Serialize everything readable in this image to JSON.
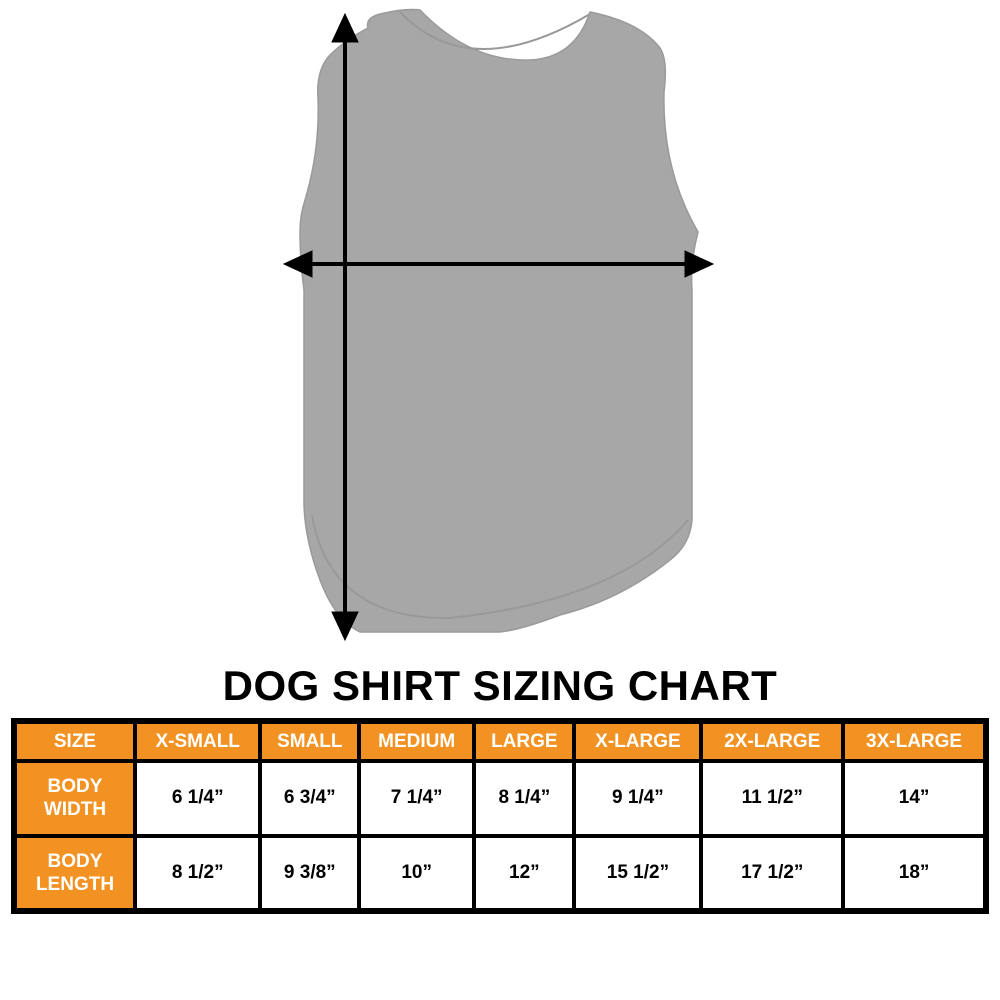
{
  "title": "DOG SHIRT SIZING CHART",
  "colors": {
    "header_bg": "#f29222",
    "shirt": "#a7a7a7",
    "border": "#000000"
  },
  "table": {
    "headers": [
      "SIZE",
      "X-SMALL",
      "SMALL",
      "MEDIUM",
      "LARGE",
      "X-LARGE",
      "2X-LARGE",
      "3X-LARGE"
    ],
    "rows": [
      {
        "label": "BODY WIDTH",
        "values": [
          "6 1/4”",
          "6 3/4”",
          "7 1/4”",
          "8 1/4”",
          "9 1/4”",
          "11 1/2”",
          "14”"
        ]
      },
      {
        "label": "BODY LENGTH",
        "values": [
          "8 1/2”",
          "9 3/8”",
          "10”",
          "12”",
          "15 1/2”",
          "17 1/2”",
          "18”"
        ]
      }
    ]
  }
}
